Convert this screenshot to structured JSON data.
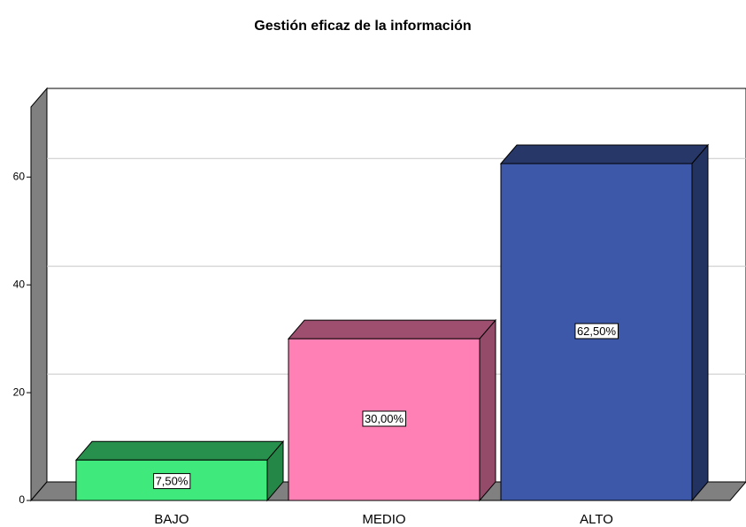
{
  "chart_data": {
    "type": "bar3d",
    "title": "Gestión eficaz de la información",
    "categories": [
      "BAJO",
      "MEDIO",
      "ALTO"
    ],
    "values": [
      7.5,
      30,
      62.5
    ],
    "value_labels": [
      "7,50%",
      "30,00%",
      "62,50%"
    ],
    "colors": [
      "#3fe97b",
      "#ff80b5",
      "#3d58a8"
    ],
    "ylim": [
      0,
      73
    ],
    "yticks": [
      0,
      20,
      40,
      60
    ],
    "grid": true
  }
}
